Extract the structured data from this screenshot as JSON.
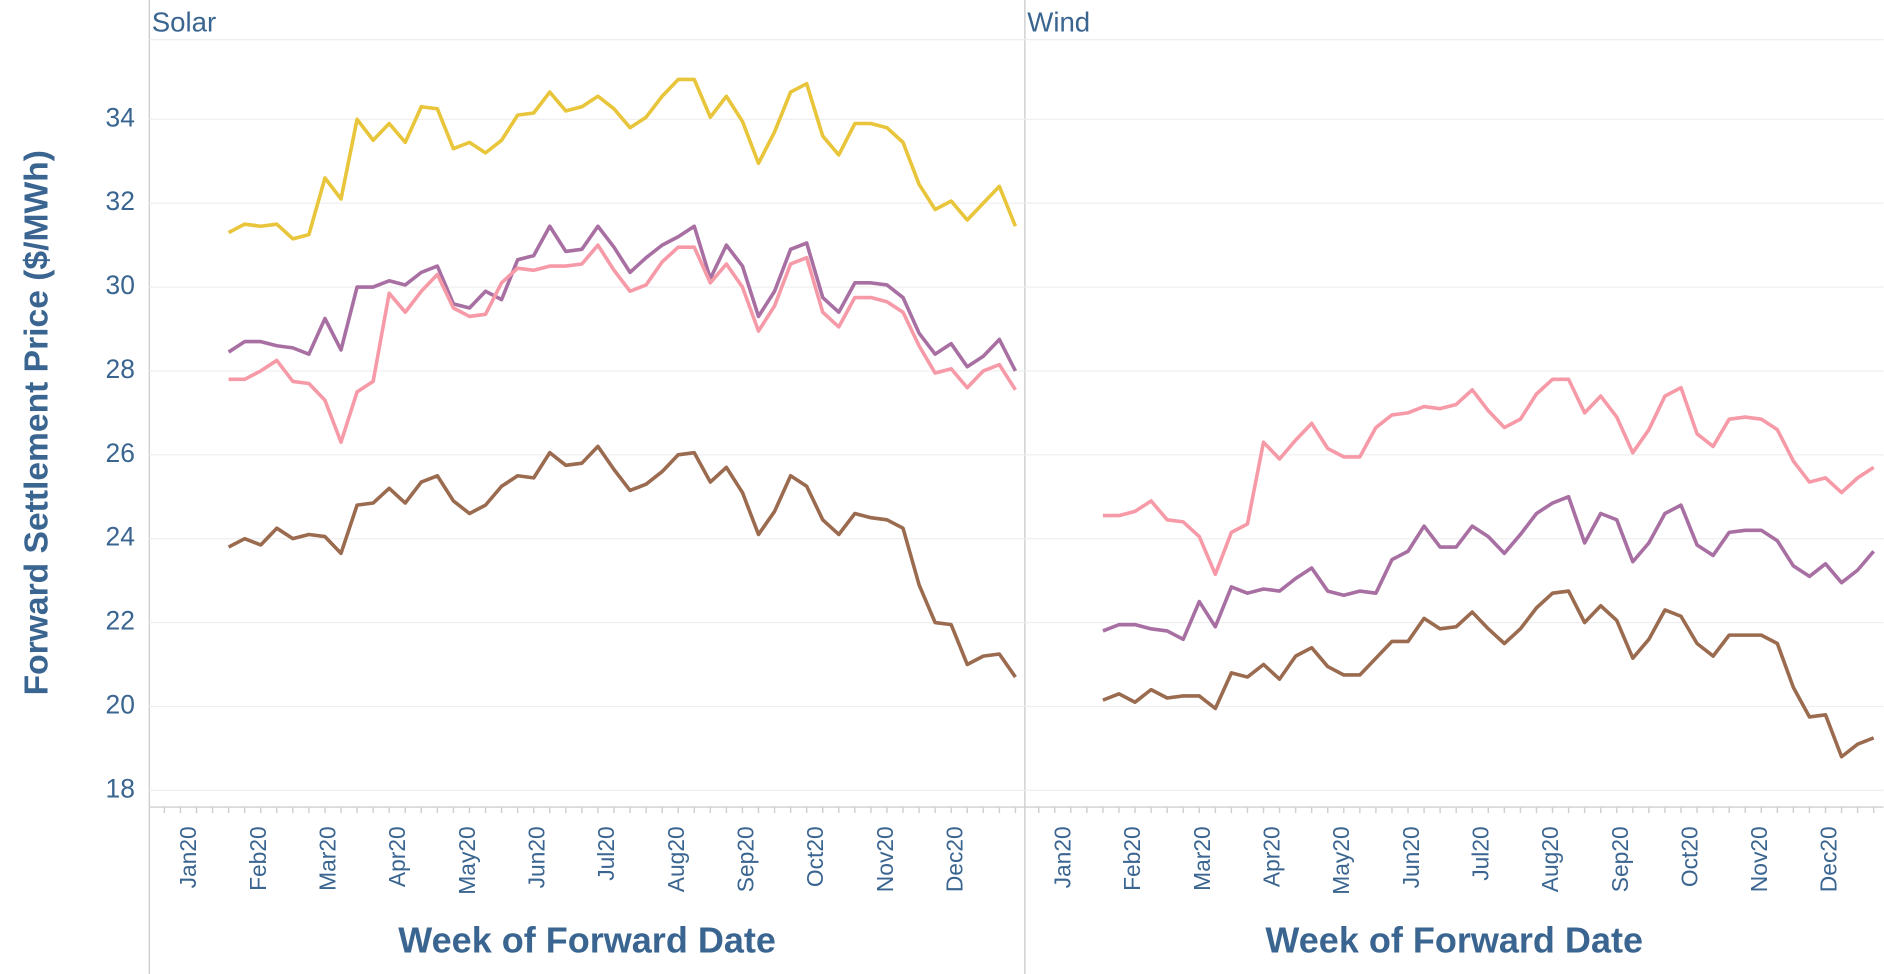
{
  "chart_data": [
    {
      "type": "line",
      "title": "Solar",
      "ylabel": "Forward Settlement Price ($/MWh)",
      "xlabel": "Week of Forward Date",
      "xticks": [
        "Jan20",
        "Feb20",
        "Mar20",
        "Apr20",
        "May20",
        "Jun20",
        "Jul20",
        "Aug20",
        "Sep20",
        "Oct20",
        "Nov20",
        "Dec20"
      ],
      "ylim": [
        17.6,
        35.9
      ],
      "yticks": [
        18,
        20,
        22,
        24,
        26,
        28,
        30,
        32,
        34
      ],
      "grid": true,
      "series": [
        {
          "color": "#e8c53a",
          "values": [
            31.3,
            31.5,
            31.45,
            31.5,
            31.15,
            31.25,
            32.6,
            32.1,
            34.0,
            33.5,
            33.9,
            33.45,
            34.3,
            34.25,
            33.3,
            33.45,
            33.2,
            33.5,
            34.1,
            34.15,
            34.65,
            34.2,
            34.3,
            34.55,
            34.25,
            33.8,
            34.05,
            34.55,
            34.95,
            34.95,
            34.05,
            34.55,
            33.95,
            32.95,
            33.7,
            34.65,
            34.85,
            33.6,
            33.15,
            33.9,
            33.9,
            33.8,
            33.45,
            32.45,
            31.85,
            32.05,
            31.6,
            32.0,
            32.4,
            31.45
          ]
        },
        {
          "color": "#a86fa3",
          "values": [
            28.45,
            28.7,
            28.7,
            28.6,
            28.55,
            28.4,
            29.25,
            28.5,
            30.0,
            30.0,
            30.15,
            30.05,
            30.35,
            30.5,
            29.6,
            29.5,
            29.9,
            29.7,
            30.65,
            30.75,
            31.45,
            30.85,
            30.9,
            31.45,
            30.95,
            30.35,
            30.7,
            31.0,
            31.2,
            31.45,
            30.2,
            31.0,
            30.5,
            29.3,
            29.9,
            30.9,
            31.05,
            29.75,
            29.4,
            30.1,
            30.1,
            30.05,
            29.75,
            28.9,
            28.4,
            28.65,
            28.1,
            28.35,
            28.75,
            28.0
          ]
        },
        {
          "color": "#f79aa8",
          "values": [
            27.8,
            27.8,
            28.0,
            28.25,
            27.75,
            27.7,
            27.3,
            26.3,
            27.5,
            27.75,
            29.85,
            29.4,
            29.9,
            30.3,
            29.5,
            29.3,
            29.35,
            30.1,
            30.45,
            30.4,
            30.5,
            30.5,
            30.55,
            31.0,
            30.4,
            29.9,
            30.05,
            30.6,
            30.95,
            30.95,
            30.1,
            30.55,
            30.0,
            28.95,
            29.55,
            30.55,
            30.7,
            29.4,
            29.05,
            29.75,
            29.75,
            29.65,
            29.4,
            28.6,
            27.95,
            28.05,
            27.6,
            28.0,
            28.15,
            27.55
          ]
        },
        {
          "color": "#9b6b50",
          "values": [
            23.8,
            24.0,
            23.85,
            24.25,
            24.0,
            24.1,
            24.05,
            23.65,
            24.8,
            24.85,
            25.2,
            24.85,
            25.35,
            25.5,
            24.9,
            24.6,
            24.8,
            25.25,
            25.5,
            25.45,
            26.05,
            25.75,
            25.8,
            26.2,
            25.65,
            25.15,
            25.3,
            25.6,
            26.0,
            26.05,
            25.35,
            25.7,
            25.1,
            24.1,
            24.65,
            25.5,
            25.25,
            24.45,
            24.1,
            24.6,
            24.5,
            24.45,
            24.25,
            22.9,
            22.0,
            21.95,
            21.0,
            21.2,
            21.25,
            20.7
          ]
        }
      ]
    },
    {
      "type": "line",
      "title": "Wind",
      "xlabel": "Week of Forward Date",
      "xticks": [
        "Jan20",
        "Feb20",
        "Mar20",
        "Apr20",
        "May20",
        "Jun20",
        "Jul20",
        "Aug20",
        "Sep20",
        "Oct20",
        "Nov20",
        "Dec20"
      ],
      "ylim": [
        17.6,
        35.9
      ],
      "grid": true,
      "series": [
        {
          "color": "#f79aa8",
          "values": [
            24.55,
            24.55,
            24.65,
            24.9,
            24.45,
            24.4,
            24.05,
            23.15,
            24.15,
            24.35,
            26.3,
            25.9,
            26.35,
            26.75,
            26.15,
            25.95,
            25.95,
            26.65,
            26.95,
            27.0,
            27.15,
            27.1,
            27.2,
            27.55,
            27.05,
            26.65,
            26.85,
            27.45,
            27.8,
            27.8,
            27.0,
            27.4,
            26.9,
            26.05,
            26.6,
            27.4,
            27.6,
            26.5,
            26.2,
            26.85,
            26.9,
            26.85,
            26.6,
            25.85,
            25.35,
            25.45,
            25.1,
            25.45,
            25.7
          ]
        },
        {
          "color": "#a86fa3",
          "values": [
            21.8,
            21.95,
            21.95,
            21.85,
            21.8,
            21.6,
            22.5,
            21.9,
            22.85,
            22.7,
            22.8,
            22.75,
            23.05,
            23.3,
            22.75,
            22.65,
            22.75,
            22.7,
            23.5,
            23.7,
            24.3,
            23.8,
            23.8,
            24.3,
            24.05,
            23.65,
            24.1,
            24.6,
            24.85,
            25.0,
            23.9,
            24.6,
            24.45,
            23.45,
            23.9,
            24.6,
            24.8,
            23.85,
            23.6,
            24.15,
            24.2,
            24.2,
            23.95,
            23.35,
            23.1,
            23.4,
            22.95,
            23.25,
            23.7
          ]
        },
        {
          "color": "#9b6b50",
          "values": [
            20.15,
            20.3,
            20.1,
            20.4,
            20.2,
            20.25,
            20.25,
            19.95,
            20.8,
            20.7,
            21.0,
            20.65,
            21.2,
            21.4,
            20.95,
            20.75,
            20.75,
            21.15,
            21.55,
            21.55,
            22.1,
            21.85,
            21.9,
            22.25,
            21.85,
            21.5,
            21.85,
            22.35,
            22.7,
            22.75,
            22.0,
            22.4,
            22.05,
            21.15,
            21.6,
            22.3,
            22.15,
            21.5,
            21.2,
            21.7,
            21.7,
            21.7,
            21.5,
            20.45,
            19.75,
            19.8,
            18.8,
            19.1,
            19.25
          ]
        }
      ]
    }
  ]
}
